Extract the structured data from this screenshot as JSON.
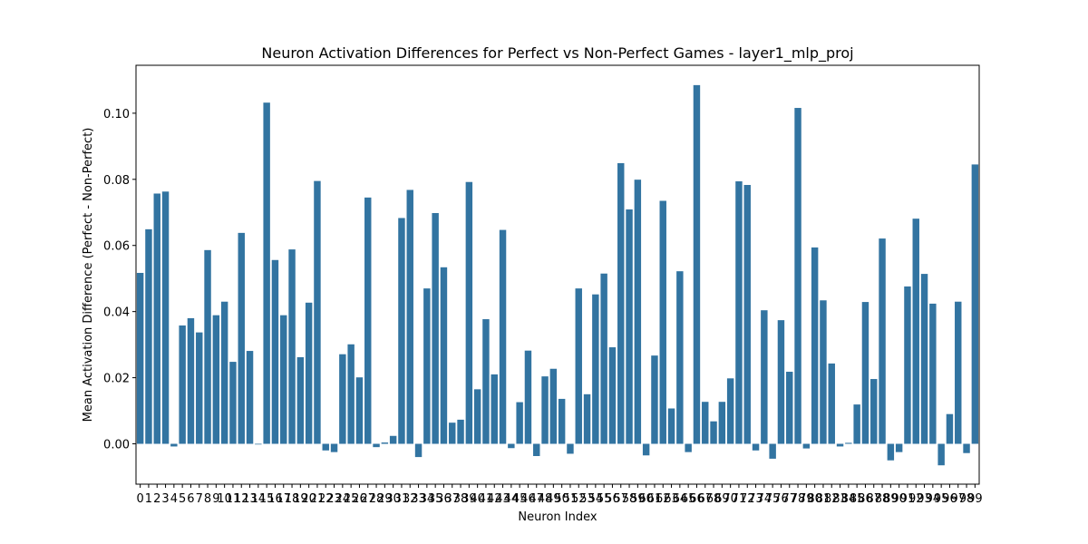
{
  "chart_data": {
    "type": "bar",
    "title": "Neuron Activation Differences for Perfect vs Non-Perfect Games - layer1_mlp_proj",
    "xlabel": "Neuron Index",
    "ylabel": "Mean Activation Difference (Perfect - Non-Perfect)",
    "ylim": [
      -0.0122,
      0.1145
    ],
    "yticks": [
      0.0,
      0.02,
      0.04,
      0.06,
      0.08,
      0.1
    ],
    "ytick_labels": [
      "0.00",
      "0.02",
      "0.04",
      "0.06",
      "0.08",
      "0.10"
    ],
    "grid": false,
    "color": "#3274a1",
    "categories": [
      "0",
      "1",
      "2",
      "3",
      "4",
      "5",
      "6",
      "7",
      "8",
      "9",
      "10",
      "11",
      "12",
      "13",
      "14",
      "15",
      "16",
      "17",
      "18",
      "19",
      "20",
      "21",
      "22",
      "23",
      "24",
      "25",
      "26",
      "27",
      "28",
      "29",
      "30",
      "31",
      "32",
      "33",
      "34",
      "35",
      "36",
      "37",
      "38",
      "39",
      "40",
      "41",
      "42",
      "43",
      "44",
      "45",
      "46",
      "47",
      "48",
      "49",
      "50",
      "51",
      "52",
      "53",
      "54",
      "55",
      "56",
      "57",
      "58",
      "59",
      "60",
      "61",
      "62",
      "63",
      "64",
      "65",
      "66",
      "67",
      "68",
      "69",
      "70",
      "71",
      "72",
      "73",
      "74",
      "75",
      "76",
      "77",
      "78",
      "79",
      "80",
      "81",
      "82",
      "83",
      "84",
      "85",
      "86",
      "87",
      "88",
      "89",
      "90",
      "91",
      "92",
      "93",
      "94",
      "95",
      "96",
      "97",
      "98",
      "99"
    ],
    "values": [
      0.0517,
      0.0649,
      0.0757,
      0.0763,
      -0.0008,
      0.0358,
      0.038,
      0.0337,
      0.0586,
      0.0389,
      0.043,
      0.0248,
      0.0638,
      0.0281,
      -0.0002,
      0.1032,
      0.0556,
      0.0389,
      0.0588,
      0.0262,
      0.0427,
      0.0795,
      -0.002,
      -0.0025,
      0.0271,
      0.0301,
      0.0201,
      0.0745,
      -0.001,
      0.0004,
      0.0024,
      0.0683,
      0.0768,
      -0.004,
      0.047,
      0.0698,
      0.0534,
      0.0064,
      0.0073,
      0.0792,
      0.0165,
      0.0377,
      0.021,
      0.0647,
      -0.0013,
      0.0126,
      0.0282,
      -0.0037,
      0.0204,
      0.0227,
      0.0136,
      -0.003,
      0.047,
      0.015,
      0.0452,
      0.0515,
      0.0292,
      0.0849,
      0.0709,
      0.0799,
      -0.0035,
      0.0267,
      0.0735,
      0.0107,
      0.0522,
      -0.0025,
      0.1085,
      0.0127,
      0.0068,
      0.0127,
      0.0198,
      0.0794,
      0.0783,
      -0.002,
      0.0404,
      -0.0045,
      0.0374,
      0.0218,
      0.1016,
      -0.0014,
      0.0594,
      0.0434,
      0.0243,
      -0.0008,
      0.0003,
      0.0119,
      0.0429,
      0.0196,
      0.0621,
      -0.005,
      -0.0025,
      0.0476,
      0.0681,
      0.0514,
      0.0424,
      -0.0065,
      0.009,
      0.043,
      -0.0028,
      0.0845
    ]
  }
}
